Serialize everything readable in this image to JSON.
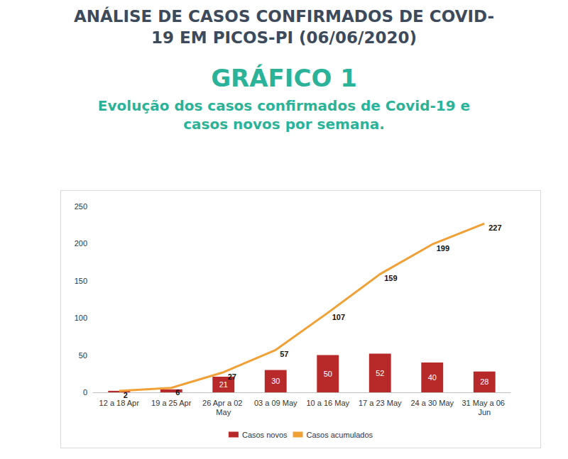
{
  "header": "ANÁLISE DE CASOS CONFIRMADOS DE COVID-19 EM PICOS-PI (06/06/2020)",
  "chart_data": {
    "type": "bar",
    "title": "GRÁFICO 1",
    "subtitle": "Evolução dos casos confirmados de Covid-19 e casos novos por semana.",
    "categories": [
      "12 a 18 Apr",
      "19 a 25 Apr",
      "26 Apr a 02 May",
      "03 a 09 May",
      "10 a 16 May",
      "17 a 23 May",
      "24 a 30 May",
      "31 May a 06 Jun"
    ],
    "series": [
      {
        "name": "Casos novos",
        "type": "bar",
        "color": "#b82a2a",
        "values": [
          2,
          4,
          21,
          30,
          50,
          52,
          40,
          28
        ],
        "value_labels": [
          null,
          null,
          "21",
          "30",
          "50",
          "52",
          "40",
          "28"
        ]
      },
      {
        "name": "Casos acumulados",
        "type": "line",
        "color": "#f0a035",
        "marker": "none",
        "values": [
          2,
          6,
          27,
          57,
          107,
          159,
          199,
          227
        ]
      }
    ],
    "ylim": [
      0,
      250
    ],
    "yticks": [
      0,
      50,
      100,
      150,
      200,
      250
    ],
    "grid": false,
    "legend": "bottom",
    "data_labels": true
  }
}
